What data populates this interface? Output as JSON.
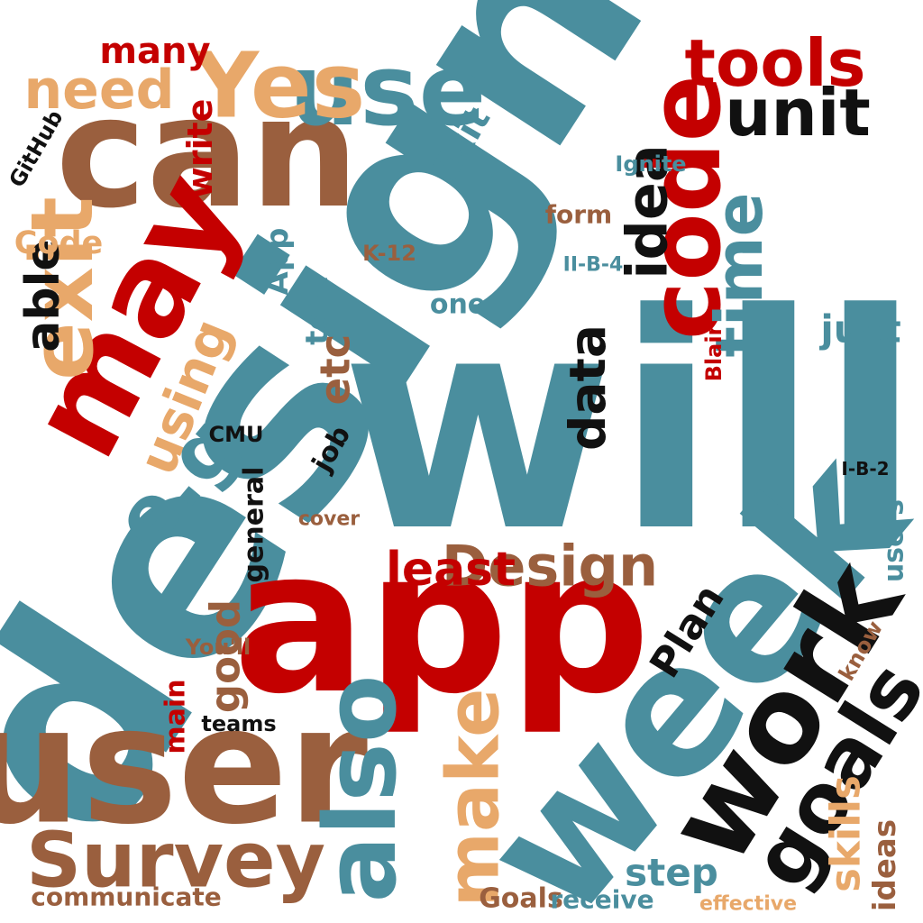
{
  "words": [
    {
      "text": "design",
      "color": "#4a8e9e"
    },
    {
      "text": "will",
      "color": "#4a8e9e"
    },
    {
      "text": "app",
      "color": "#c40000"
    },
    {
      "text": "week",
      "color": "#4a8e9e"
    },
    {
      "text": "user",
      "color": "#9a5f3e"
    },
    {
      "text": "can",
      "color": "#9a5f3e"
    },
    {
      "text": "may",
      "color": "#c40000"
    },
    {
      "text": "exit",
      "color": "#e8a86a"
    },
    {
      "text": "code",
      "color": "#c40000"
    },
    {
      "text": "use",
      "color": "#4a8e9e"
    },
    {
      "text": "Yes",
      "color": "#e8a86a"
    },
    {
      "text": "need",
      "color": "#e8a86a"
    },
    {
      "text": "tools",
      "color": "#c40000"
    },
    {
      "text": "unit",
      "color": "#111111"
    },
    {
      "text": "idea",
      "color": "#111111"
    },
    {
      "text": "time",
      "color": "#4a8e9e"
    },
    {
      "text": "work",
      "color": "#111111"
    },
    {
      "text": "goals",
      "color": "#111111"
    },
    {
      "text": "also",
      "color": "#4a8e9e"
    },
    {
      "text": "make",
      "color": "#e8a86a"
    },
    {
      "text": "Survey",
      "color": "#9a5f3e"
    },
    {
      "text": "Design",
      "color": "#9a5f3e"
    },
    {
      "text": "least",
      "color": "#c40000"
    },
    {
      "text": "step",
      "color": "#4a8e9e"
    },
    {
      "text": "skills",
      "color": "#e8a86a"
    },
    {
      "text": "using",
      "color": "#e8a86a"
    },
    {
      "text": "e.g",
      "color": "#4a8e9e"
    },
    {
      "text": "data",
      "color": "#111111"
    },
    {
      "text": "etc",
      "color": "#9a5f3e"
    },
    {
      "text": "able",
      "color": "#111111"
    },
    {
      "text": "communicate",
      "color": "#9a5f3e"
    },
    {
      "text": "Goals",
      "color": "#9a5f3e"
    },
    {
      "text": "Plan",
      "color": "#111111"
    },
    {
      "text": "good",
      "color": "#9a5f3e"
    },
    {
      "text": "just",
      "color": "#4a8e9e"
    },
    {
      "text": "many",
      "color": "#c40000"
    },
    {
      "text": "Code",
      "color": "#e8a86a"
    },
    {
      "text": "write",
      "color": "#c40000"
    },
    {
      "text": "test",
      "color": "#4a8e9e"
    },
    {
      "text": "App",
      "color": "#4a8e9e"
    },
    {
      "text": "form",
      "color": "#9a5f3e"
    },
    {
      "text": "Ignite",
      "color": "#4a8e9e"
    },
    {
      "text": "Exit",
      "color": "#4a8e9e"
    },
    {
      "text": "users",
      "color": "#4a8e9e"
    },
    {
      "text": "K-12",
      "color": "#9a5f3e"
    },
    {
      "text": "one",
      "color": "#4a8e9e"
    },
    {
      "text": "teams",
      "color": "#111111"
    },
    {
      "text": "main",
      "color": "#c40000"
    },
    {
      "text": "ideas",
      "color": "#9a5f3e"
    },
    {
      "text": "receive",
      "color": "#4a8e9e"
    },
    {
      "text": "effective",
      "color": "#e8a86a"
    },
    {
      "text": "cover",
      "color": "#9a5f3e"
    },
    {
      "text": "know",
      "color": "#9a5f3e"
    },
    {
      "text": "You'll",
      "color": "#9a5f3e"
    },
    {
      "text": "GitHub",
      "color": "#111111"
    },
    {
      "text": "CMU",
      "color": "#111111"
    },
    {
      "text": "general",
      "color": "#111111"
    },
    {
      "text": "job",
      "color": "#111111"
    },
    {
      "text": "I-B-2",
      "color": "#111111"
    },
    {
      "text": "II-B-4",
      "color": "#4a8e9e"
    },
    {
      "text": "Blair",
      "color": "#c40000"
    }
  ]
}
